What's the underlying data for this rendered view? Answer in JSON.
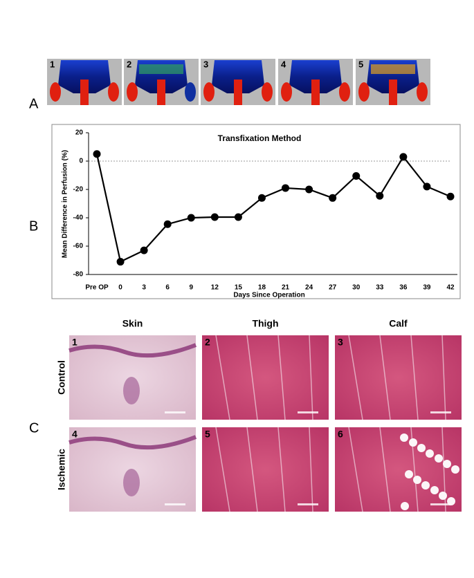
{
  "panel_a": {
    "label": "A",
    "images": [
      "1",
      "2",
      "3",
      "4",
      "5"
    ]
  },
  "panel_b": {
    "label": "B"
  },
  "chart_data": {
    "type": "line",
    "title": "Transfixation Method",
    "x_label": "Days Since Operation",
    "y_label": "Mean Difference in Perfusion (%)",
    "categories": [
      "Pre OP",
      "0",
      "3",
      "6",
      "9",
      "12",
      "15",
      "18",
      "21",
      "24",
      "27",
      "30",
      "33",
      "36",
      "39",
      "42"
    ],
    "values": [
      5,
      -71,
      -63,
      -44.5,
      -40,
      -39.5,
      -39.5,
      -26,
      -19,
      -20,
      -26,
      -10.5,
      -24.5,
      3,
      -18,
      -25
    ],
    "color": "#000000",
    "ylim": [
      -80,
      20
    ],
    "yticks": [
      -80,
      -60,
      -40,
      -20,
      0,
      20
    ],
    "reference_line": 0,
    "grid": false
  },
  "panel_c": {
    "label": "C",
    "columns": [
      "Skin",
      "Thigh",
      "Calf"
    ],
    "rows": [
      "Control",
      "Ischemic"
    ],
    "images": [
      "1",
      "2",
      "3",
      "4",
      "5",
      "6"
    ]
  }
}
